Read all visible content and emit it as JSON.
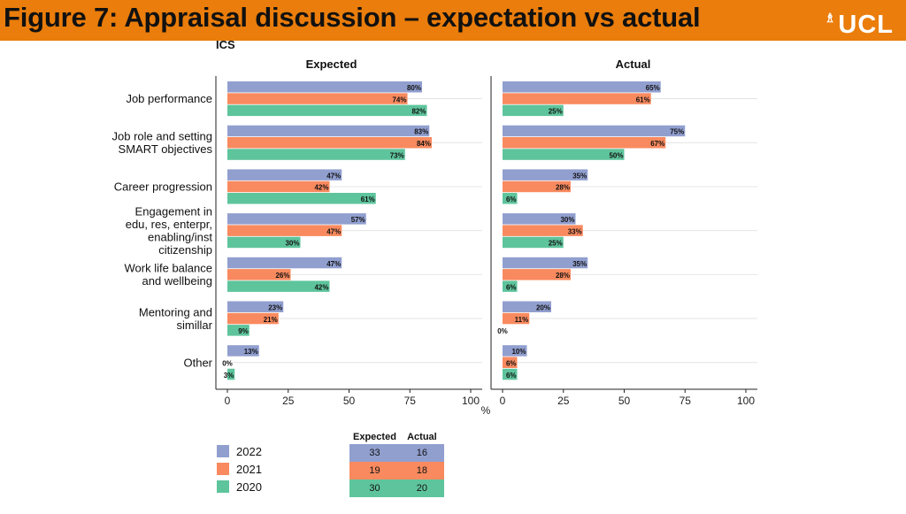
{
  "header": {
    "title": "Figure 7: Appraisal discussion – expectation vs actual",
    "logo_text": "UCL",
    "logo_mark": "♗"
  },
  "colors": {
    "banner": "#ea7d0b",
    "2022": "#919fcf",
    "2021": "#f98a5f",
    "2020": "#5ec49c"
  },
  "chart_data": {
    "type": "bar",
    "orientation": "horizontal",
    "group_label": "ICS",
    "unit_label": "%",
    "categories": [
      [
        "Job performance"
      ],
      [
        "Job role and setting",
        "SMART objectives"
      ],
      [
        "Career progression"
      ],
      [
        "Engagement in",
        "edu, res, enterpr,",
        "enabling/inst",
        "citizenship"
      ],
      [
        "Work life balance",
        "and wellbeing"
      ],
      [
        "Mentoring and",
        "simillar"
      ],
      [
        "Other"
      ]
    ],
    "xlim": [
      0,
      100
    ],
    "xticks": [
      0,
      25,
      50,
      75,
      100
    ],
    "panels": [
      {
        "title": "Expected",
        "series": [
          {
            "name": "2022",
            "values": [
              80,
              83,
              47,
              57,
              47,
              23,
              13
            ]
          },
          {
            "name": "2021",
            "values": [
              74,
              84,
              42,
              47,
              26,
              21,
              0
            ]
          },
          {
            "name": "2020",
            "values": [
              82,
              73,
              61,
              30,
              42,
              9,
              3
            ]
          }
        ]
      },
      {
        "title": "Actual",
        "series": [
          {
            "name": "2022",
            "values": [
              65,
              75,
              35,
              30,
              35,
              20,
              10
            ]
          },
          {
            "name": "2021",
            "values": [
              61,
              67,
              28,
              33,
              28,
              11,
              6
            ]
          },
          {
            "name": "2020",
            "values": [
              25,
              50,
              6,
              25,
              6,
              0,
              6
            ]
          }
        ]
      }
    ],
    "legend": [
      "2022",
      "2021",
      "2020"
    ],
    "summary_table": {
      "headers": [
        "Expected",
        "Actual"
      ],
      "rows": [
        {
          "series": "2022",
          "expected": "33",
          "actual": "16"
        },
        {
          "series": "2021",
          "expected": "19",
          "actual": "18"
        },
        {
          "series": "2020",
          "expected": "30",
          "actual": "20"
        }
      ]
    }
  }
}
